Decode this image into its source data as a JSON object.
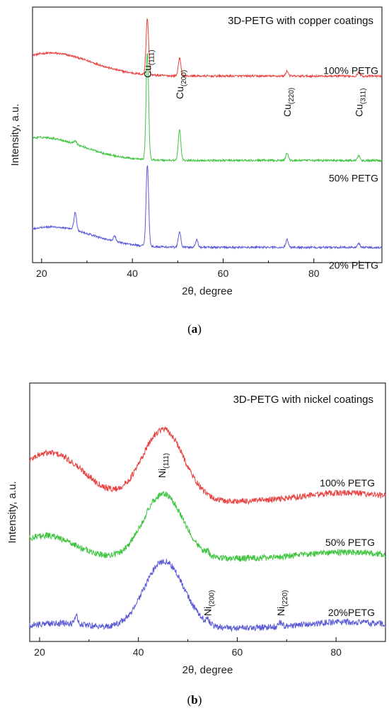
{
  "chart_data": [
    {
      "type": "line",
      "panel": "a",
      "title": "3D-PETG with copper coatings",
      "xlabel": "2θ, degree",
      "ylabel": "Intensity, a.u.",
      "xlim": [
        18,
        95
      ],
      "xticks": [
        20,
        40,
        60,
        80
      ],
      "caption": "a",
      "peak_labels": [
        {
          "base": "Cu",
          "sub": "(111)",
          "x": 43.3
        },
        {
          "base": "Cu",
          "sub": "(200)",
          "x": 50.4
        },
        {
          "base": "Cu",
          "sub": "(220)",
          "x": 74.1
        },
        {
          "base": "Cu",
          "sub": "(311)",
          "x": 89.9
        }
      ],
      "series": [
        {
          "name": "100% PETG",
          "color": "#e8413f",
          "baseline": 0.73,
          "hump": {
            "amp": 0.09,
            "center": 22,
            "width": 9
          },
          "peaks": [
            {
              "x": 43.3,
              "h": 0.22
            },
            {
              "x": 50.4,
              "h": 0.07
            },
            {
              "x": 74.1,
              "h": 0.02
            },
            {
              "x": 89.9,
              "h": 0.015
            }
          ]
        },
        {
          "name": "50% PETG",
          "color": "#3ec43e",
          "baseline": 0.4,
          "hump": {
            "amp": 0.09,
            "center": 20,
            "width": 9
          },
          "peaks": [
            {
              "x": 27.4,
              "h": 0.015
            },
            {
              "x": 43.3,
              "h": 0.42
            },
            {
              "x": 50.4,
              "h": 0.12
            },
            {
              "x": 74.1,
              "h": 0.03
            },
            {
              "x": 89.9,
              "h": 0.02
            }
          ]
        },
        {
          "name": "20% PETG",
          "color": "#5a5ad6",
          "baseline": 0.06,
          "hump": {
            "amp": 0.08,
            "center": 22,
            "width": 9
          },
          "peaks": [
            {
              "x": 27.4,
              "h": 0.07
            },
            {
              "x": 36.1,
              "h": 0.02
            },
            {
              "x": 43.3,
              "h": 0.32
            },
            {
              "x": 50.4,
              "h": 0.06
            },
            {
              "x": 54.2,
              "h": 0.03
            },
            {
              "x": 74.1,
              "h": 0.03
            },
            {
              "x": 89.9,
              "h": 0.015
            }
          ]
        }
      ]
    },
    {
      "type": "line",
      "panel": "b",
      "title": "3D-PETG with nickel coatings",
      "xlabel": "2θ, degree",
      "ylabel": "Intensity, a.u.",
      "xlim": [
        18,
        90
      ],
      "xticks": [
        20,
        40,
        60,
        80
      ],
      "caption": "b",
      "peak_labels": [
        {
          "base": "Ni",
          "sub": "(111)",
          "x": 44.8
        },
        {
          "base": "Ni",
          "sub": "(200)",
          "x": 54.0
        },
        {
          "base": "Ni",
          "sub": "(220)",
          "x": 68.8
        }
      ],
      "series": [
        {
          "name": "100% PETG",
          "color": "#e8413f",
          "baseline": 0.54,
          "hump": {
            "amp": 0.19,
            "center": 22,
            "width": 7
          },
          "broad": {
            "amp": 0.28,
            "center": 45,
            "width": 4.2
          },
          "tail": {
            "amp": 0.035,
            "center": 82,
            "width": 9
          },
          "peaks": []
        },
        {
          "name": "50% PETG",
          "color": "#3ec43e",
          "baseline": 0.32,
          "hump": {
            "amp": 0.09,
            "center": 21,
            "width": 6
          },
          "broad": {
            "amp": 0.25,
            "center": 45,
            "width": 4.0
          },
          "tail": {
            "amp": 0.025,
            "center": 82,
            "width": 9
          },
          "peaks": [
            {
              "x": 54.0,
              "h": 0.012
            }
          ]
        },
        {
          "name": "20%PETG",
          "color": "#5a5ad6",
          "baseline": 0.05,
          "hump": {
            "amp": 0.02,
            "center": 24,
            "width": 6
          },
          "broad": {
            "amp": 0.26,
            "center": 45.2,
            "width": 4.0
          },
          "tail": {
            "amp": 0.025,
            "center": 82,
            "width": 9
          },
          "peaks": [
            {
              "x": 27.4,
              "h": 0.04
            },
            {
              "x": 54.0,
              "h": 0.02
            },
            {
              "x": 68.8,
              "h": 0.015
            }
          ]
        }
      ]
    }
  ]
}
